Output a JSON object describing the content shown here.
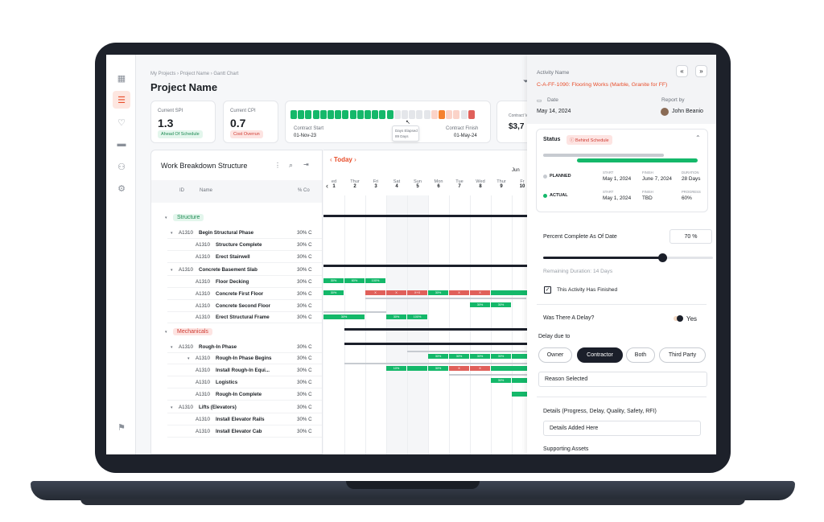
{
  "breadcrumb": {
    "a": "My Projects",
    "b": "Project Name",
    "c": "Gantt Chart"
  },
  "page_title": "Project Name",
  "kpi": {
    "spi": {
      "label": "Current SPI",
      "value": "1.3",
      "badge": "Ahead Of Schedule"
    },
    "cpi": {
      "label": "Current CPI",
      "value": "0.7",
      "badge": "Cost Overrun"
    },
    "contract": {
      "start_label": "Contract Start",
      "start": "01-Nov-23",
      "finish_label": "Contract Finish",
      "finish": "01-May-24",
      "tooltip_a": "Days Elapsed",
      "tooltip_b": "89 Days",
      "progress_fraction": 0.75
    },
    "value_label": "Contract V",
    "value": "$3,7"
  },
  "wbs": {
    "title": "Work Breakdown Structure",
    "col_id": "ID",
    "col_name": "Name",
    "col_pct": "% Co",
    "rows": [
      {
        "kind": "group",
        "label": "Structure",
        "color": "green"
      },
      {
        "kind": "row",
        "id": "A1310",
        "name": "Begin Structural Phase",
        "pct": "30% C",
        "level": 1
      },
      {
        "kind": "row",
        "id": "A1310",
        "name": "Structure Complete",
        "pct": "30% C",
        "level": 2
      },
      {
        "kind": "row",
        "id": "A1310",
        "name": "Erect Stairwell",
        "pct": "30% C",
        "level": 2
      },
      {
        "kind": "row",
        "id": "A1310",
        "name": "Concrete Basement Slab",
        "pct": "30% C",
        "level": 1
      },
      {
        "kind": "row",
        "id": "A1310",
        "name": "Floor Decking",
        "pct": "30% C",
        "level": 2
      },
      {
        "kind": "row",
        "id": "A1310",
        "name": "Concrete First Floor",
        "pct": "30% C",
        "level": 2
      },
      {
        "kind": "row",
        "id": "A1310",
        "name": "Concrete Second Floor",
        "pct": "30% C",
        "level": 2
      },
      {
        "kind": "row",
        "id": "A1310",
        "name": "Erect Structural Frame",
        "pct": "30% C",
        "level": 2
      },
      {
        "kind": "group",
        "label": "Mechanicals",
        "color": "red"
      },
      {
        "kind": "row",
        "id": "A1310",
        "name": "Rough-In Phase",
        "pct": "30% C",
        "level": 1
      },
      {
        "kind": "row",
        "id": "A1310",
        "name": "Rough-In Phase Begins",
        "pct": "30% C",
        "level": 2
      },
      {
        "kind": "row",
        "id": "A1310",
        "name": "Install Rough-In Equi...",
        "pct": "30% C",
        "level": 2
      },
      {
        "kind": "row",
        "id": "A1310",
        "name": "Logistics",
        "pct": "30% C",
        "level": 2
      },
      {
        "kind": "row",
        "id": "A1310",
        "name": "Rough-In Complete",
        "pct": "30% C",
        "level": 2
      },
      {
        "kind": "row",
        "id": "A1310",
        "name": "Lifts (Elevators)",
        "pct": "30% C",
        "level": 1
      },
      {
        "kind": "row",
        "id": "A1310",
        "name": "Install Elevator Rails",
        "pct": "30% C",
        "level": 2
      },
      {
        "kind": "row",
        "id": "A1310",
        "name": "Install Elevator Cab",
        "pct": "30% C",
        "level": 2
      }
    ]
  },
  "gantt": {
    "today": "Today",
    "month": "Jun",
    "days": [
      {
        "d": "ed",
        "n": "1"
      },
      {
        "d": "Thur",
        "n": "2"
      },
      {
        "d": "Fri",
        "n": "3"
      },
      {
        "d": "Sat",
        "n": "4"
      },
      {
        "d": "Sun",
        "n": "5"
      },
      {
        "d": "Mon",
        "n": "6"
      },
      {
        "d": "Tue",
        "n": "7"
      },
      {
        "d": "Wed",
        "n": "8"
      },
      {
        "d": "Thur",
        "n": "9"
      },
      {
        "d": "Fr",
        "n": "10"
      }
    ]
  },
  "panel": {
    "activity_label": "Activity Name",
    "activity_name": "C-A-FF-1090: Flooring Works (Marble, Granite for FF)",
    "date_label": "Date",
    "date": "May 14, 2024",
    "report_label": "Report by",
    "reporter": "John Beanio",
    "status_label": "Status",
    "status_badge": "Behind Schedule",
    "planned": {
      "label": "PLANNED",
      "start_l": "START",
      "start": "May 1, 2024",
      "finish_l": "FINISH",
      "finish": "June 7, 2024",
      "dur_l": "DURATION",
      "dur": "28 Days"
    },
    "actual": {
      "label": "ACTUAL",
      "start_l": "START",
      "start": "May 1, 2024",
      "finish_l": "FINISH",
      "finish": "TBD",
      "prog_l": "PROGRESS",
      "prog": "60%"
    },
    "pct_label": "Percent Complete As Of Date",
    "pct_value": "70 %",
    "pct_fraction": 0.7,
    "remaining": "Remaining Duration: 14 Days",
    "finished_label": "This Activity Has Finished",
    "delay_q": "Was There A Delay?",
    "delay_ans": "Yes",
    "delay_due": "Delay due to",
    "opt_owner": "Owner",
    "opt_contractor": "Contractor",
    "opt_both": "Both",
    "opt_third": "Third Party",
    "reason": "Reason Selected",
    "details_label": "Details (Progress, Delay, Quality, Safety, RFI)",
    "details_value": "Details Added Here",
    "assets_label": "Supporting Assets",
    "colors": {
      "accent": "#e84d2a",
      "green": "#14b86a",
      "red": "#e0605a",
      "dark": "#1b1f2a"
    }
  }
}
